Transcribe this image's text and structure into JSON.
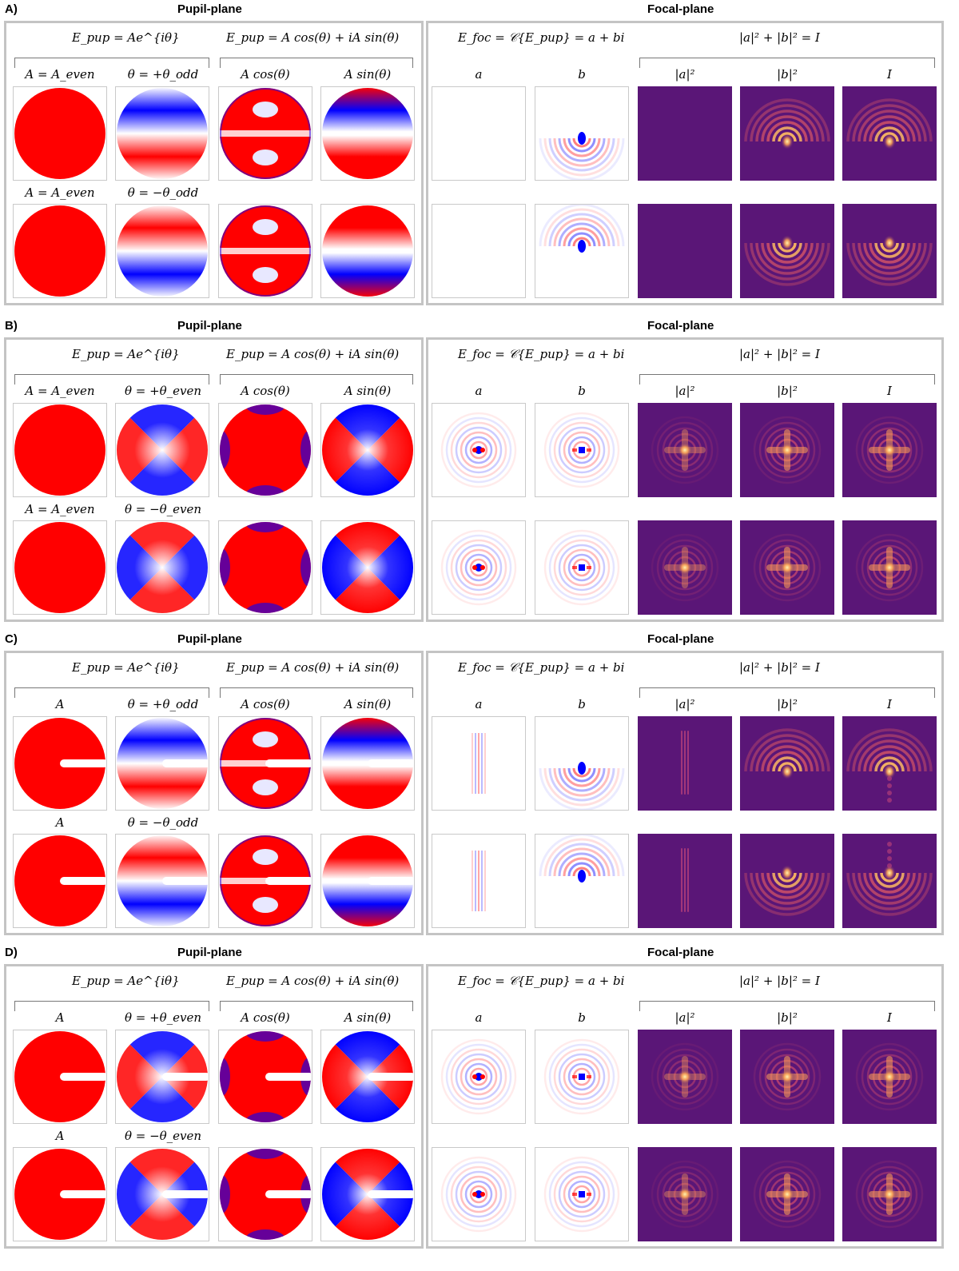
{
  "pupil_plane_title": "Pupil-plane",
  "focal_plane_title": "Focal-plane",
  "equations": {
    "pupil_polar": "E_pup = Ae^{iθ}",
    "pupil_cartesian": "E_pup = A cos(θ) + iA sin(θ)",
    "focal_field": "E_foc = 𝒞{E_pup} = a + bi",
    "focal_intensity": "|a|² + |b|² = I"
  },
  "columns": {
    "acos": "A cos(θ)",
    "asin": "A sin(θ)",
    "a": "a",
    "b": "b",
    "a2": "|a|²",
    "b2": "|b|²",
    "I": "I"
  },
  "sections": [
    {
      "label": "A)",
      "amp_label": "A = A_even",
      "theta_plus": "θ = +θ_odd",
      "theta_minus": "θ = −θ_odd",
      "mode": "odd",
      "slit": false
    },
    {
      "label": "B)",
      "amp_label": "A = A_even",
      "theta_plus": "θ = +θ_even",
      "theta_minus": "θ = −θ_even",
      "mode": "even",
      "slit": false
    },
    {
      "label": "C)",
      "amp_label": "A",
      "theta_plus": "θ = +θ_odd",
      "theta_minus": "θ = −θ_odd",
      "mode": "odd",
      "slit": true
    },
    {
      "label": "D)",
      "amp_label": "A",
      "theta_plus": "θ = +θ_even",
      "theta_minus": "θ = −θ_even",
      "mode": "even",
      "slit": true
    }
  ],
  "colors": {
    "positive": "#ff0000",
    "negative": "#0000ff",
    "zero": "#ffffff",
    "inferno_background": "#5a1677",
    "inferno_peak": "#fff3b0",
    "panel_border": "#c4c4c4"
  }
}
